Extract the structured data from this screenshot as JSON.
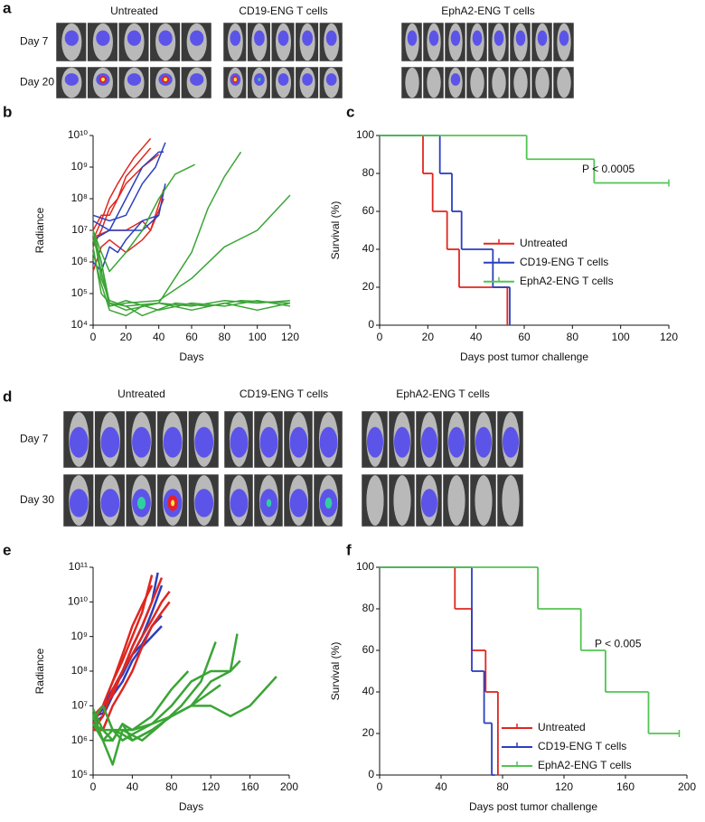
{
  "image_panels": [
    {
      "panel_label": "a",
      "groups": [
        "Untreated",
        "CD19-ENG T cells",
        "EphA2-ENG T cells"
      ],
      "rows": [
        "Day 7",
        "Day 20"
      ]
    },
    {
      "panel_label": "d",
      "groups": [
        "Untreated",
        "CD19-ENG T cells",
        "EphA2-ENG T cells"
      ],
      "rows": [
        "Day 7",
        "Day 30"
      ]
    }
  ],
  "chart_data": [
    {
      "type": "line",
      "panel_label": "b",
      "xlabel": "Days",
      "ylabel": "Radiance",
      "log_scale": true,
      "line_width": 1.5,
      "xlim": [
        0,
        120
      ],
      "xticks": [
        0,
        20,
        40,
        60,
        80,
        100,
        120
      ],
      "ylim": [
        10000,
        10000000000
      ],
      "yticks": [
        {
          "value": 10000,
          "label": "10⁴"
        },
        {
          "value": 100000,
          "label": "10⁵"
        },
        {
          "value": 1000000,
          "label": "10⁶"
        },
        {
          "value": 10000000,
          "label": "10⁷"
        },
        {
          "value": 100000000,
          "label": "10⁸"
        },
        {
          "value": 1000000000,
          "label": "10⁹"
        },
        {
          "value": 10000000000,
          "label": "10¹⁰"
        }
      ],
      "series": [
        {
          "color": "#e0261f",
          "x": [
            0,
            5,
            10,
            15,
            20,
            25,
            30,
            35
          ],
          "values": [
            5000000.0,
            20000000.0,
            100000000.0,
            300000000.0,
            800000000.0,
            2000000000.0,
            4000000000.0,
            8000000000.0
          ]
        },
        {
          "color": "#e0261f",
          "x": [
            0,
            5,
            10,
            15,
            20,
            25,
            30,
            35
          ],
          "values": [
            10000000.0,
            30000000.0,
            30000000.0,
            100000000.0,
            500000000.0,
            1000000000.0,
            2000000000.0,
            4000000000.0
          ]
        },
        {
          "color": "#e0261f",
          "x": [
            0,
            5,
            10,
            15,
            20,
            30,
            40
          ],
          "values": [
            3000000.0,
            10000000.0,
            50000000.0,
            100000000.0,
            300000000.0,
            1000000000.0,
            2500000000.0
          ]
        },
        {
          "color": "#e0261f",
          "x": [
            0,
            5,
            10,
            20,
            30,
            35,
            43
          ],
          "values": [
            500000.0,
            3000000.0,
            5000000.0,
            2000000.0,
            5000000.0,
            10000000.0,
            100000000.0
          ]
        },
        {
          "color": "#e0261f",
          "x": [
            0,
            10,
            20,
            30,
            35,
            43
          ],
          "values": [
            6000000.0,
            10000000.0,
            10000000.0,
            20000000.0,
            10000000.0,
            200000000.0
          ]
        },
        {
          "color": "#2b3fbf",
          "x": [
            0,
            10,
            20,
            30,
            38,
            44
          ],
          "values": [
            30000000.0,
            20000000.0,
            30000000.0,
            300000000.0,
            1000000000.0,
            6000000000.0
          ]
        },
        {
          "color": "#2b3fbf",
          "x": [
            0,
            10,
            20,
            30,
            40,
            43
          ],
          "values": [
            20000000.0,
            10000000.0,
            100000000.0,
            1000000000.0,
            3000000000.0,
            3000000000.0
          ]
        },
        {
          "color": "#2b3fbf",
          "x": [
            0,
            5,
            10,
            15,
            20,
            30,
            40,
            44
          ],
          "values": [
            1000000.0,
            500000.0,
            3000000.0,
            2000000.0,
            5000000.0,
            20000000.0,
            30000000.0,
            300000000.0
          ]
        },
        {
          "color": "#2b3fbf",
          "x": [
            0,
            10,
            20,
            30,
            40
          ],
          "values": [
            5000000.0,
            10000000.0,
            10000000.0,
            10000000.0,
            30000000.0
          ]
        },
        {
          "color": "#3aa535",
          "x": [
            0,
            5,
            10,
            20,
            30,
            40,
            50,
            62
          ],
          "values": [
            10000000.0,
            2000000.0,
            500000.0,
            2000000.0,
            10000000.0,
            100000000.0,
            600000000.0,
            1200000000.0
          ]
        },
        {
          "color": "#3aa535",
          "x": [
            0,
            5,
            10,
            20,
            40,
            60,
            70,
            80,
            90
          ],
          "values": [
            10000000.0,
            1000000.0,
            50000.0,
            40000.0,
            50000.0,
            2000000.0,
            50000000.0,
            500000000.0,
            3000000000.0
          ]
        },
        {
          "color": "#3aa535",
          "x": [
            0,
            5,
            10,
            20,
            40,
            60,
            80,
            100,
            120
          ],
          "values": [
            5000000.0,
            1000000.0,
            40000.0,
            50000.0,
            60000.0,
            300000.0,
            3000000.0,
            10000000.0,
            130000000.0
          ]
        },
        {
          "color": "#3aa535",
          "x": [
            0,
            5,
            10,
            20,
            40,
            60,
            80,
            100,
            120
          ],
          "values": [
            3000000.0,
            100000.0,
            50000.0,
            30000.0,
            50000.0,
            40000.0,
            60000.0,
            50000.0,
            60000.0
          ]
        },
        {
          "color": "#3aa535",
          "x": [
            0,
            5,
            10,
            20,
            40,
            60,
            80,
            100,
            120
          ],
          "values": [
            8000000.0,
            500000.0,
            40000.0,
            60000.0,
            30000.0,
            50000.0,
            40000.0,
            60000.0,
            40000.0
          ]
        },
        {
          "color": "#3aa535",
          "x": [
            0,
            5,
            10,
            20,
            30,
            40,
            60,
            80,
            100,
            120
          ],
          "values": [
            2000000.0,
            200000.0,
            30000.0,
            20000.0,
            40000.0,
            50000.0,
            30000.0,
            50000.0,
            30000.0,
            50000.0
          ]
        },
        {
          "color": "#3aa535",
          "x": [
            0,
            5,
            10,
            20,
            30,
            50,
            70,
            90,
            120
          ],
          "values": [
            10000000.0,
            300000.0,
            60000.0,
            40000.0,
            20000.0,
            50000.0,
            40000.0,
            60000.0,
            50000.0
          ]
        }
      ]
    },
    {
      "type": "survival",
      "panel_label": "c",
      "xlabel": "Days post tumor challenge",
      "ylabel": "Survival (%)",
      "xlim": [
        0,
        120
      ],
      "xticks": [
        0,
        20,
        40,
        60,
        80,
        100,
        120
      ],
      "ylim": [
        0,
        100
      ],
      "yticks": [
        0,
        20,
        40,
        60,
        80,
        100
      ],
      "legend": "center right",
      "annotation": "P < 0.0005",
      "series": [
        {
          "name": "Untreated",
          "color": "#e0261f",
          "x": [
            0,
            18,
            22,
            28,
            33,
            53
          ],
          "values": [
            100,
            80,
            60,
            40,
            20,
            0
          ]
        },
        {
          "name": "CD19-ENG T cells",
          "color": "#2b3fbf",
          "x": [
            0,
            25,
            30,
            34,
            47,
            54
          ],
          "values": [
            100,
            80,
            60,
            40,
            20,
            0
          ]
        },
        {
          "name": "EphA2-ENG T cells",
          "color": "#52c452",
          "x": [
            0,
            61,
            89,
            120
          ],
          "values": [
            100,
            87.5,
            75,
            75
          ]
        }
      ]
    },
    {
      "type": "line",
      "panel_label": "e",
      "xlabel": "Days",
      "ylabel": "Radiance",
      "log_scale": true,
      "line_width": 2.5,
      "xlim": [
        0,
        200
      ],
      "xticks": [
        0,
        40,
        80,
        120,
        160,
        200
      ],
      "ylim": [
        100000,
        100000000000
      ],
      "yticks": [
        {
          "value": 100000,
          "label": "10⁵"
        },
        {
          "value": 1000000,
          "label": "10⁶"
        },
        {
          "value": 10000000,
          "label": "10⁷"
        },
        {
          "value": 100000000,
          "label": "10⁸"
        },
        {
          "value": 1000000000,
          "label": "10⁹"
        },
        {
          "value": 10000000000,
          "label": "10¹⁰"
        },
        {
          "value": 100000000000,
          "label": "10¹¹"
        }
      ],
      "series": [
        {
          "color": "#2b3fbf",
          "x": [
            0,
            10,
            20,
            30,
            40,
            50,
            60,
            66
          ],
          "values": [
            4000000.0,
            8000000.0,
            30000000.0,
            100000000.0,
            500000000.0,
            2000000000.0,
            10000000000.0,
            70000000000.0
          ]
        },
        {
          "color": "#2b3fbf",
          "x": [
            0,
            10,
            20,
            30,
            40,
            50,
            60,
            70
          ],
          "values": [
            3000000.0,
            5000000.0,
            20000000.0,
            100000000.0,
            300000000.0,
            1000000000.0,
            5000000000.0,
            30000000000.0
          ]
        },
        {
          "color": "#2b3fbf",
          "x": [
            0,
            10,
            20,
            30,
            40,
            50,
            60,
            70
          ],
          "values": [
            5000000.0,
            6000000.0,
            20000000.0,
            50000000.0,
            200000000.0,
            500000000.0,
            1000000000.0,
            2000000000.0
          ]
        },
        {
          "color": "#2b3fbf",
          "x": [
            0,
            10,
            20,
            30,
            40,
            50,
            60,
            70
          ],
          "values": [
            3000000.0,
            10000000.0,
            30000000.0,
            80000000.0,
            300000000.0,
            600000000.0,
            2000000000.0,
            4000000000.0
          ]
        },
        {
          "color": "#e0261f",
          "x": [
            0,
            10,
            20,
            30,
            40,
            50,
            60
          ],
          "values": [
            3000000.0,
            10000000.0,
            50000000.0,
            200000000.0,
            1000000000.0,
            5000000000.0,
            60000000000.0
          ]
        },
        {
          "color": "#e0261f",
          "x": [
            0,
            10,
            20,
            30,
            40,
            50,
            60,
            70
          ],
          "values": [
            2000000.0,
            5000000.0,
            30000000.0,
            100000000.0,
            500000000.0,
            2000000000.0,
            10000000000.0,
            50000000000.0
          ]
        },
        {
          "color": "#e0261f",
          "x": [
            0,
            10,
            20,
            30,
            40,
            50,
            60,
            70,
            78
          ],
          "values": [
            5000000.0,
            10000000.0,
            20000000.0,
            100000000.0,
            300000000.0,
            1000000000.0,
            3000000000.0,
            10000000000.0,
            20000000000.0
          ]
        },
        {
          "color": "#e0261f",
          "x": [
            0,
            10,
            20,
            30,
            40,
            50,
            60,
            70,
            78
          ],
          "values": [
            2000000.0,
            2000000.0,
            10000000.0,
            30000000.0,
            100000000.0,
            500000000.0,
            2000000000.0,
            5000000000.0,
            10000000000.0
          ]
        },
        {
          "color": "#e0261f",
          "x": [
            0,
            10,
            20,
            30,
            40,
            50,
            60
          ],
          "values": [
            4000000.0,
            10000000.0,
            50000000.0,
            300000000.0,
            2000000000.0,
            8000000000.0,
            30000000000.0
          ]
        },
        {
          "color": "#3aa535",
          "x": [
            0,
            10,
            20,
            30,
            40,
            60,
            80,
            97
          ],
          "values": [
            8000000.0,
            2000000.0,
            1000000.0,
            3000000.0,
            2000000.0,
            5000000.0,
            30000000.0,
            100000000.0
          ]
        },
        {
          "color": "#3aa535",
          "x": [
            0,
            10,
            20,
            30,
            50,
            70,
            90,
            110,
            125
          ],
          "values": [
            3000000.0,
            1000000.0,
            200000.0,
            2000000.0,
            1000000.0,
            3000000.0,
            10000000.0,
            50000000.0,
            700000000.0
          ]
        },
        {
          "color": "#3aa535",
          "x": [
            0,
            10,
            20,
            30,
            40,
            60,
            80,
            100,
            120,
            140,
            147
          ],
          "values": [
            5000000.0,
            1000000.0,
            1000000.0,
            3000000.0,
            1000000.0,
            2000000.0,
            5000000.0,
            10000000.0,
            50000000.0,
            100000000.0,
            1200000000.0
          ]
        },
        {
          "color": "#3aa535",
          "x": [
            0,
            10,
            20,
            30,
            40,
            60,
            80,
            100,
            120,
            140,
            150
          ],
          "values": [
            3000000.0,
            2000000.0,
            2000000.0,
            1000000.0,
            1500000.0,
            3000000.0,
            10000000.0,
            50000000.0,
            100000000.0,
            100000000.0,
            200000000.0
          ]
        },
        {
          "color": "#3aa535",
          "x": [
            0,
            10,
            20,
            30,
            40,
            60,
            80,
            100,
            120,
            140,
            160,
            187
          ],
          "values": [
            4000000.0,
            10000000.0,
            2000000.0,
            2000000.0,
            2000000.0,
            3000000.0,
            5000000.0,
            10000000.0,
            10000000.0,
            5000000.0,
            10000000.0,
            70000000.0
          ]
        },
        {
          "color": "#3aa535",
          "x": [
            0,
            10,
            20,
            30,
            40,
            60,
            80,
            100,
            130
          ],
          "values": [
            6000000.0,
            1000000.0,
            2000000.0,
            1500000.0,
            1000000.0,
            2000000.0,
            5000000.0,
            10000000.0,
            40000000.0
          ]
        }
      ]
    },
    {
      "type": "survival",
      "panel_label": "f",
      "xlabel": "Days post tumor challenge",
      "ylabel": "Survival (%)",
      "xlim": [
        0,
        200
      ],
      "xticks": [
        0,
        40,
        80,
        120,
        160,
        200
      ],
      "ylim": [
        0,
        100
      ],
      "yticks": [
        0,
        20,
        40,
        60,
        80,
        100
      ],
      "legend": "lower right",
      "annotation": "P < 0.005",
      "series": [
        {
          "name": "Untreated",
          "color": "#e0261f",
          "x": [
            0,
            49,
            60,
            69,
            77
          ],
          "values": [
            100,
            80,
            60,
            40,
            0
          ]
        },
        {
          "name": "CD19-ENG T cells",
          "color": "#2b3fbf",
          "x": [
            0,
            60,
            68,
            73,
            75
          ],
          "values": [
            100,
            50,
            25,
            0,
            0
          ]
        },
        {
          "name": "EphA2-ENG T cells",
          "color": "#52c452",
          "x": [
            0,
            103,
            131,
            147,
            175,
            195
          ],
          "values": [
            100,
            80,
            60,
            40,
            20,
            20
          ]
        }
      ]
    }
  ]
}
